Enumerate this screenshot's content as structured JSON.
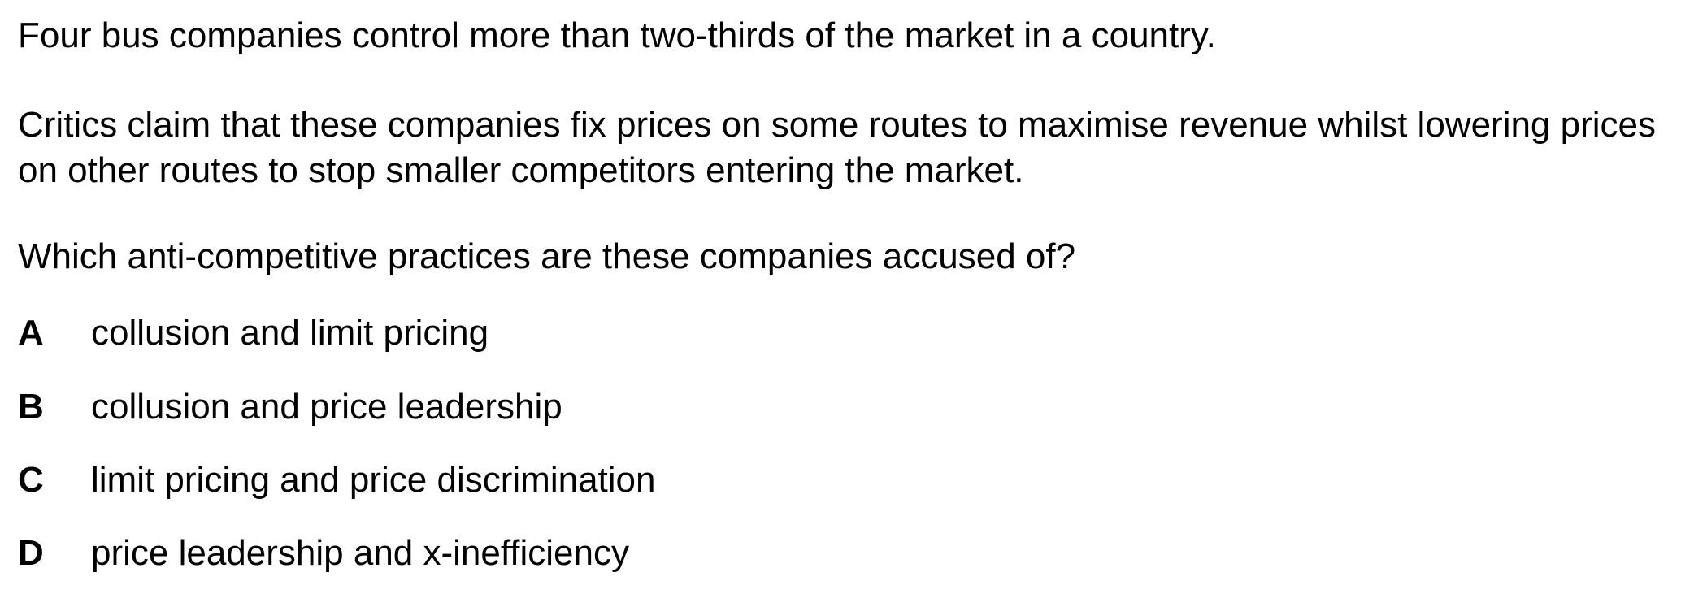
{
  "question": {
    "stem_1": "Four bus companies control more than two-thirds of the market in a country.",
    "stem_2": "Critics claim that these companies fix prices on some routes to maximise revenue whilst lowering prices on other routes to stop smaller competitors entering the market.",
    "prompt": "Which anti-competitive practices are these companies accused of?",
    "options": [
      {
        "letter": "A",
        "text": "collusion and limit pricing"
      },
      {
        "letter": "B",
        "text": "collusion and price leadership"
      },
      {
        "letter": "C",
        "text": "limit pricing and price discrimination"
      },
      {
        "letter": "D",
        "text": "price leadership and x-inefficiency"
      }
    ]
  }
}
